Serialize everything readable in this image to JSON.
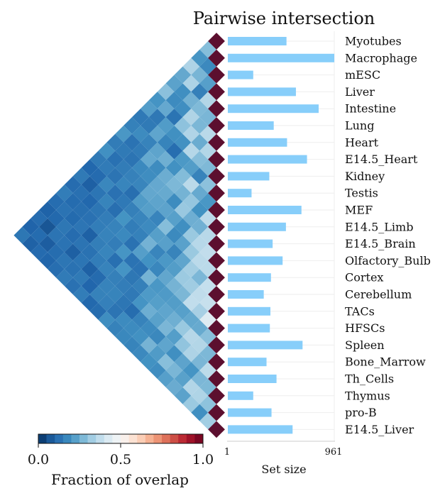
{
  "chart_data": {
    "type": "heatmap",
    "title": "Pairwise intersection",
    "labels": [
      "Myotubes",
      "Macrophage",
      "mESC",
      "Liver",
      "Intestine",
      "Lung",
      "Heart",
      "E14.5_Heart",
      "Kidney",
      "Testis",
      "MEF",
      "E14.5_Limb",
      "E14.5_Brain",
      "Olfactory_Bulb",
      "Cortex",
      "Cerebellum",
      "TACs",
      "HFSCs",
      "Spleen",
      "Bone_Marrow",
      "Th_Cells",
      "Thymus",
      "pro-B",
      "E14.5_Liver"
    ],
    "set_sizes": [
      530,
      961,
      230,
      615,
      820,
      415,
      535,
      715,
      375,
      215,
      665,
      525,
      405,
      495,
      390,
      325,
      385,
      380,
      675,
      350,
      440,
      230,
      395,
      585
    ],
    "bar_color": "#87cefa",
    "diagonal_color": "#5c0f2f",
    "set_size_axis": {
      "label": "Set size",
      "min_label": "1",
      "max_label": "961",
      "range": [
        1,
        961
      ]
    },
    "colorbar": {
      "label": "Fraction of overlap",
      "ticks": [
        "0.0",
        "0.5",
        "1.0"
      ],
      "range": [
        0,
        1
      ],
      "colormap": "RdBu_r"
    }
  }
}
